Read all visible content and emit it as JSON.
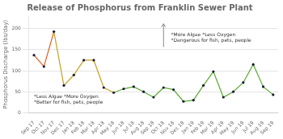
{
  "chart_data": {
    "type": "line",
    "title": "Release of Phosphorus from Franklin Sewer Plant",
    "ylabel": "Phosphorus Discharge (lbs/day)",
    "categories": [
      "Sep 17",
      "Oct 17",
      "Nov 17",
      "Dec 17",
      "Jan 18",
      "Feb 18",
      "Mar 18",
      "Apr 18",
      "May 18",
      "Jun 18",
      "Jul 18",
      "Aug 18",
      "Sep 18",
      "Oct 18",
      "Nov 18",
      "Dec 18",
      "Jan 19",
      "Feb 19",
      "Mar 19",
      "Apr 19",
      "May 19",
      "Jun 19",
      "Jul 19",
      "Aug 19",
      "Sep 19"
    ],
    "series": [
      {
        "color": "#e05a1a",
        "values": [
          137,
          110,
          193,
          null,
          null,
          null,
          null,
          null,
          null,
          null,
          null,
          null,
          null,
          null,
          null,
          null,
          null,
          null,
          null,
          null,
          null,
          null,
          null,
          null,
          null
        ]
      },
      {
        "color": "#c8a020",
        "values": [
          null,
          null,
          193,
          65,
          90,
          125,
          125,
          60,
          48,
          null,
          null,
          null,
          null,
          null,
          null,
          null,
          null,
          null,
          null,
          null,
          null,
          null,
          null,
          null,
          null
        ]
      },
      {
        "color": "#5aaa30",
        "values": [
          null,
          null,
          null,
          null,
          null,
          null,
          null,
          null,
          48,
          57,
          62,
          50,
          37,
          60,
          55,
          27,
          30,
          65,
          98,
          37,
          50,
          72,
          115,
          62,
          43
        ]
      },
      {
        "type": "scatter",
        "color": "#1a1a3a",
        "marker": "circle",
        "values": [
          137,
          110,
          193,
          65,
          90,
          125,
          125,
          60,
          48,
          57,
          62,
          50,
          37,
          60,
          55,
          27,
          30,
          65,
          98,
          37,
          50,
          72,
          115,
          62,
          43
        ]
      }
    ],
    "ylim": [
      0,
      230
    ],
    "yticks": [
      0,
      50,
      100,
      150,
      200
    ],
    "grid": true,
    "annotations": [
      "*Less Algae *More Oxygen\n*Better for fish, pets, people",
      "*More Algae *Less Oxygen\n*Dangerous for fish, pets, people"
    ]
  }
}
